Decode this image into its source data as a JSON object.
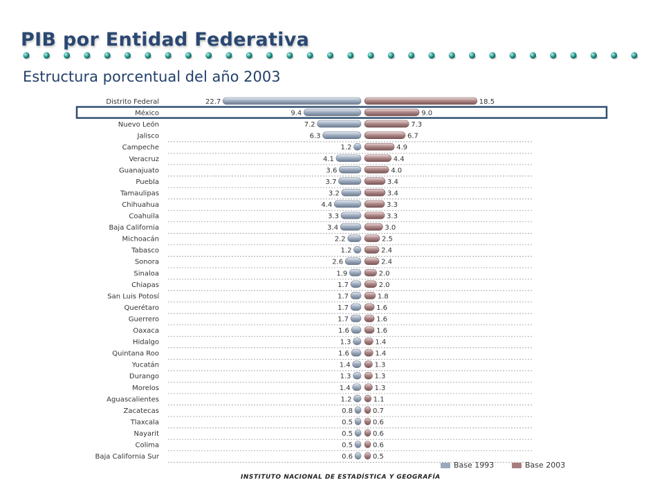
{
  "header": {
    "title": "PIB por Entidad Federativa",
    "subtitle": "Estructura porcentual del año 2003"
  },
  "footer": {
    "institution": "INSTITUTO NACIONAL DE ESTADÍSTICA Y GEOGRAFÍA"
  },
  "colors": {
    "title": "#2a4872",
    "base1993": "#9aa8bb",
    "base2003": "#a97c7d",
    "highlight_box": "#2f4f6f"
  },
  "chart_data": {
    "type": "bar",
    "orientation": "horizontal-diverging",
    "categories": [
      "Distrito Federal",
      "México",
      "Nuevo León",
      "Jalisco",
      "Campeche",
      "Veracruz",
      "Guanajuato",
      "Puebla",
      "Tamaulipas",
      "Chihuahua",
      "Coahuila",
      "Baja California",
      "Michoacán",
      "Tabasco",
      "Sonora",
      "Sinaloa",
      "Chiapas",
      "San Luis Potosí",
      "Querétaro",
      "Guerrero",
      "Oaxaca",
      "Hidalgo",
      "Quintana Roo",
      "Yucatán",
      "Durango",
      "Morelos",
      "Aguascalientes",
      "Zacatecas",
      "Tlaxcala",
      "Nayarit",
      "Colima",
      "Baja California Sur"
    ],
    "series": [
      {
        "name": "Base 1993",
        "values": [
          22.7,
          9.4,
          7.2,
          6.3,
          1.2,
          4.1,
          3.6,
          3.7,
          3.2,
          4.4,
          3.3,
          3.4,
          2.2,
          1.2,
          2.6,
          1.9,
          1.7,
          1.7,
          1.7,
          1.7,
          1.6,
          1.3,
          1.6,
          1.4,
          1.3,
          1.4,
          1.2,
          0.8,
          0.5,
          0.5,
          0.5,
          0.6
        ]
      },
      {
        "name": "Base 2003",
        "values": [
          18.5,
          9.0,
          7.3,
          6.7,
          4.9,
          4.4,
          4.0,
          3.4,
          3.4,
          3.3,
          3.3,
          3.0,
          2.5,
          2.4,
          2.4,
          2.0,
          2.0,
          1.8,
          1.6,
          1.6,
          1.6,
          1.4,
          1.4,
          1.3,
          1.3,
          1.3,
          1.1,
          0.7,
          0.6,
          0.6,
          0.6,
          0.5
        ]
      }
    ],
    "value_labels": {
      "base1993": [
        "22.7",
        "9.4",
        "7.2",
        "6.3",
        "1.2",
        "4.1",
        "3.6",
        "3.7",
        "3.2",
        "4.4",
        "3.3",
        "3.4",
        "2.2",
        "1.2",
        "2.6",
        "1.9",
        "1.7",
        "1.7",
        "1.7",
        "1.7",
        "1.6",
        "1.3",
        "1.6",
        "1.4",
        "1.3",
        "1.4",
        "1.2",
        "0.8",
        "0.5",
        "0.5",
        "0.5",
        "0.6"
      ],
      "base2003": [
        "18.5",
        "9.0",
        "7.3",
        "6.7",
        "4.9",
        "4.4",
        "4.0",
        "3.4",
        "3.4",
        "3.3",
        "3.3",
        "3.0",
        "2.5",
        "2.4",
        "2.4",
        "2.0",
        "2.0",
        "1.8",
        "1.6",
        "1.6",
        "1.6",
        "1.4",
        "1.4",
        "1.3",
        "1.3",
        "1.3",
        "1.1",
        "0.7",
        "0.6",
        "0.6",
        "0.6",
        "0.5"
      ]
    },
    "highlighted_category": "México",
    "legend": {
      "position": "bottom-right",
      "labels": [
        "Base 1993",
        "Base 2003"
      ]
    },
    "grid": true
  }
}
